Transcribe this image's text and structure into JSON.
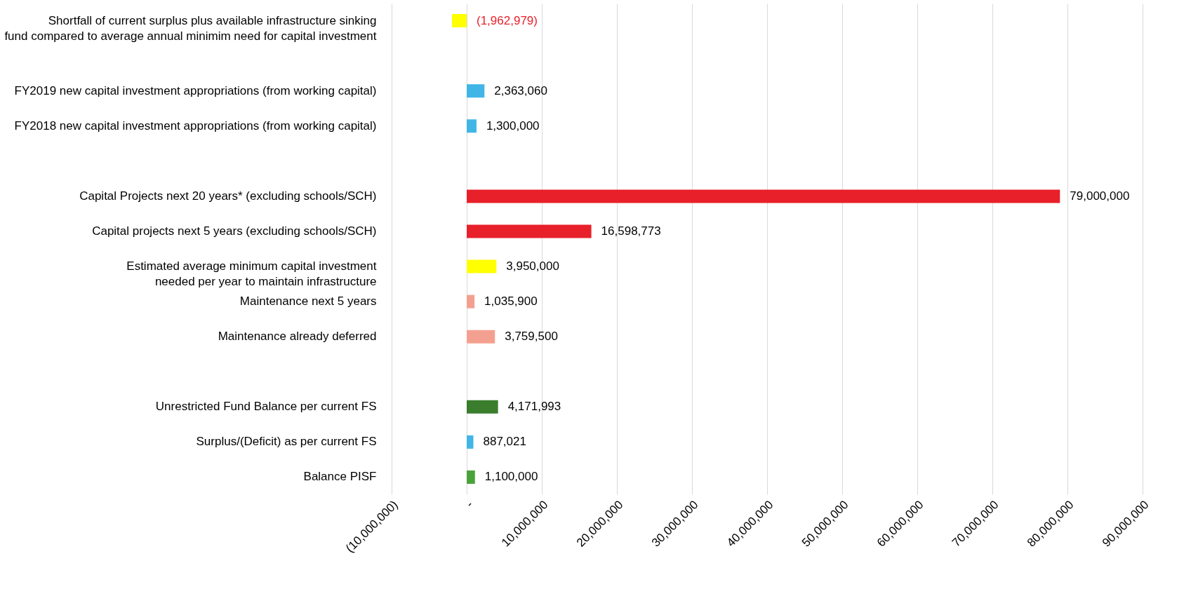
{
  "chart_data": {
    "type": "bar",
    "orientation": "horizontal",
    "categories": [
      "Shortfall of current surplus plus available infrastructure sinking fund compared to average annual minimim need for capital investment",
      null,
      "FY2019 new capital investment appropriations (from working capital)",
      "FY2018 new capital investment appropriations (from working capital)",
      null,
      "Capital Projects next 20 years* (excluding schools/SCH)",
      "Capital projects next 5 years (excluding schools/SCH)",
      "Estimated average minimum capital investment needed per year to maintain infrastructure",
      "Maintenance next 5 years",
      "Maintenance already deferred",
      null,
      "Unrestricted Fund Balance per current FS",
      "Surplus/(Deficit) as per current FS",
      "Balance PISF"
    ],
    "values": [
      -1962979,
      null,
      2363060,
      1300000,
      null,
      79000000,
      16598773,
      3950000,
      1035900,
      3759500,
      null,
      4171993,
      887021,
      1100000
    ],
    "colors": [
      "#ffff00",
      null,
      "#41b6e6",
      "#41b6e6",
      null,
      "#e8202a",
      "#e8202a",
      "#ffff00",
      "#f4a090",
      "#f4a090",
      null,
      "#3a7d2c",
      "#41b6e6",
      "#4aa33a"
    ],
    "value_labels": [
      "(1,962,979)",
      null,
      "2,363,060",
      "1,300,000",
      null,
      "79,000,000",
      "16,598,773",
      "3,950,000",
      "1,035,900",
      "3,759,500",
      null,
      "4,171,993",
      "887,021",
      "1,100,000"
    ],
    "xlim": [
      -10000000,
      90000000
    ],
    "xticks": [
      {
        "value": -10000000,
        "label": "(10,000,000)"
      },
      {
        "value": 0,
        "label": "-"
      },
      {
        "value": 10000000,
        "label": "10,000,000"
      },
      {
        "value": 20000000,
        "label": "20,000,000"
      },
      {
        "value": 30000000,
        "label": "30,000,000"
      },
      {
        "value": 40000000,
        "label": "40,000,000"
      },
      {
        "value": 50000000,
        "label": "50,000,000"
      },
      {
        "value": 60000000,
        "label": "60,000,000"
      },
      {
        "value": 70000000,
        "label": "70,000,000"
      },
      {
        "value": 80000000,
        "label": "80,000,000"
      },
      {
        "value": 90000000,
        "label": "90,000,000"
      }
    ],
    "grid": "x"
  }
}
